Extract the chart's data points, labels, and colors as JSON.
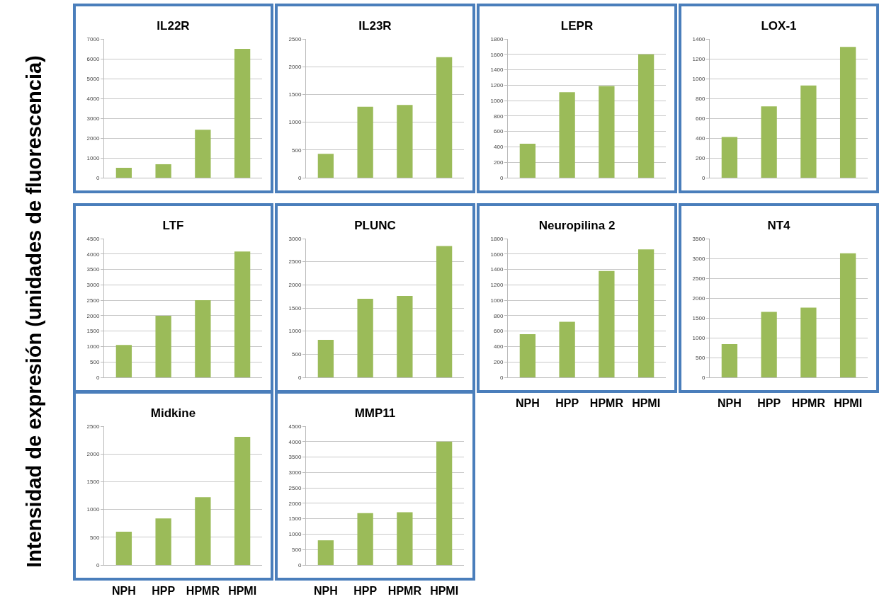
{
  "chart_data": [
    {
      "type": "bar",
      "title": "IL22R",
      "ylabel": "Intensidad de expresión (unidades de fluorescencia)",
      "categories": [
        null,
        null,
        null,
        null
      ],
      "values": [
        500,
        680,
        2420,
        6500
      ],
      "color": "#9bbb59",
      "ylim": [
        0,
        7000
      ],
      "yticks": [
        0,
        1000,
        2000,
        3000,
        4000,
        5000,
        6000,
        7000
      ],
      "grid": "y",
      "tick_labels": "y"
    },
    {
      "type": "bar",
      "title": "IL23R",
      "categories": [
        null,
        null,
        null,
        null
      ],
      "values": [
        430,
        1280,
        1310,
        2170
      ],
      "color": "#9bbb59",
      "ylim": [
        0,
        2500
      ],
      "yticks": [
        0,
        500,
        1000,
        1500,
        2000,
        2500
      ],
      "grid": "y",
      "tick_labels": "y"
    },
    {
      "type": "bar",
      "title": "LEPR",
      "categories": [
        null,
        null,
        null,
        null
      ],
      "values": [
        440,
        1110,
        1190,
        1600
      ],
      "color": "#9bbb59",
      "ylim": [
        0,
        1800
      ],
      "yticks": [
        0,
        200,
        400,
        600,
        800,
        1000,
        1200,
        1400,
        1600,
        1800
      ],
      "grid": "y",
      "tick_labels": "y"
    },
    {
      "type": "bar",
      "title": "LOX-1",
      "categories": [
        null,
        null,
        null,
        null
      ],
      "values": [
        410,
        720,
        930,
        1320
      ],
      "color": "#9bbb59",
      "ylim": [
        0,
        1400
      ],
      "yticks": [
        0,
        200,
        400,
        600,
        800,
        1000,
        1200,
        1400
      ],
      "grid": "y",
      "tick_labels": "y"
    },
    {
      "type": "bar",
      "title": "LTF",
      "categories": [
        null,
        null,
        null,
        null
      ],
      "values": [
        1050,
        2000,
        2500,
        4080
      ],
      "color": "#9bbb59",
      "ylim": [
        0,
        4500
      ],
      "yticks": [
        0,
        500,
        1000,
        1500,
        2000,
        2500,
        3000,
        3500,
        4000,
        4500
      ],
      "grid": "y",
      "tick_labels": "y"
    },
    {
      "type": "bar",
      "title": "PLUNC",
      "categories": [
        null,
        null,
        null,
        null
      ],
      "values": [
        810,
        1700,
        1760,
        2840
      ],
      "color": "#9bbb59",
      "ylim": [
        0,
        3000
      ],
      "yticks": [
        0,
        500,
        1000,
        1500,
        2000,
        2500,
        3000
      ],
      "grid": "y",
      "tick_labels": "y"
    },
    {
      "type": "bar",
      "title": "Neuropilina 2",
      "categories": [
        "NPH",
        "HPP",
        "HPMR",
        "HPMI"
      ],
      "values": [
        560,
        720,
        1380,
        1660
      ],
      "color": "#9bbb59",
      "ylim": [
        0,
        1800
      ],
      "yticks": [
        0,
        200,
        400,
        600,
        800,
        1000,
        1200,
        1400,
        1600,
        1800
      ],
      "grid": "y"
    },
    {
      "type": "bar",
      "title": "NT4",
      "categories": [
        "NPH",
        "HPP",
        "HPMR",
        "HPMI"
      ],
      "values": [
        840,
        1650,
        1760,
        3130
      ],
      "color": "#9bbb59",
      "ylim": [
        0,
        3500
      ],
      "yticks": [
        0,
        500,
        1000,
        1500,
        2000,
        2500,
        3000,
        3500
      ],
      "grid": "y"
    },
    {
      "type": "bar",
      "title": "Midkine",
      "categories": [
        "NPH",
        "HPP",
        "HPMR",
        "HPMI"
      ],
      "values": [
        600,
        840,
        1220,
        2310
      ],
      "color": "#9bbb59",
      "ylim": [
        0,
        2500
      ],
      "yticks": [
        0,
        500,
        1000,
        1500,
        2000,
        2500
      ],
      "grid": "y"
    },
    {
      "type": "bar",
      "title": "MMP11",
      "categories": [
        "NPH",
        "HPP",
        "HPMR",
        "HPMI"
      ],
      "values": [
        800,
        1680,
        1710,
        4000
      ],
      "color": "#9bbb59",
      "ylim": [
        0,
        4500
      ],
      "yticks": [
        0,
        500,
        1000,
        1500,
        2000,
        2500,
        3000,
        3500,
        4000,
        4500
      ],
      "grid": "y"
    }
  ]
}
